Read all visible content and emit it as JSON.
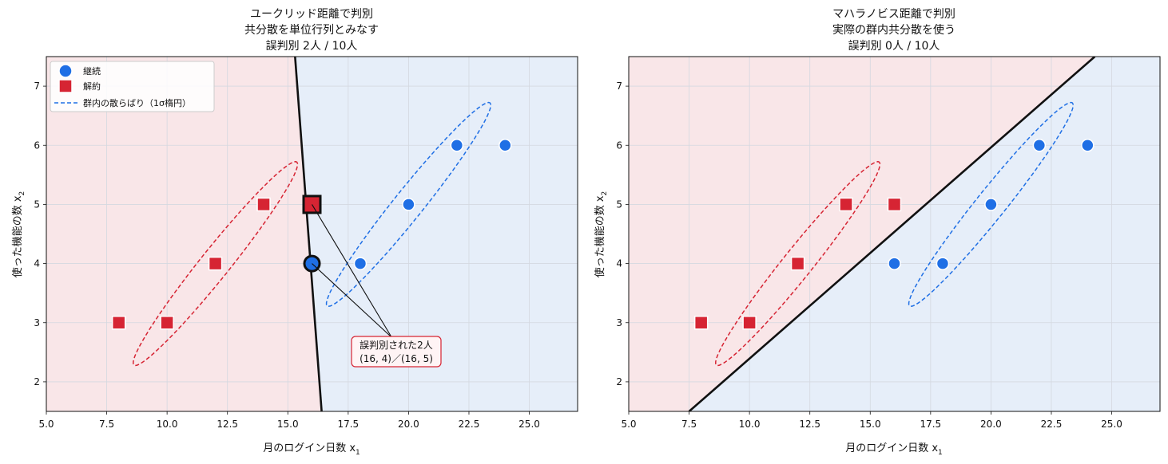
{
  "colors": {
    "continue": "#1f6fe5",
    "cancel": "#d62433",
    "region_continue": "#e6eef9",
    "region_cancel": "#f9e6e8",
    "boundary": "#111111",
    "grid": "#d4d8e0"
  },
  "legend": {
    "continue_label": "継続",
    "cancel_label": "解約",
    "scatter_label": "群内の散らばり（1σ楕円）"
  },
  "chart_data": [
    {
      "type": "scatter",
      "title_lines": [
        "ユークリッド距離で判別",
        "共分散を単位行列とみなす",
        "誤判別 2人 / 10人"
      ],
      "xlabel": "月のログイン日数 x",
      "xlabel_sub": "1",
      "ylabel": "使った機能の数 x",
      "ylabel_sub": "2",
      "xlim": [
        5,
        27
      ],
      "ylim": [
        1.5,
        7.5
      ],
      "xticks": [
        "5.0",
        "7.5",
        "10.0",
        "12.5",
        "15.0",
        "17.5",
        "20.0",
        "22.5",
        "25.0"
      ],
      "yticks": [
        "2",
        "3",
        "4",
        "5",
        "6",
        "7"
      ],
      "grid": true,
      "legend_position": "upper-left",
      "series": [
        {
          "name": "継続",
          "points": [
            [
              16,
              4
            ],
            [
              18,
              4
            ],
            [
              20,
              5
            ],
            [
              22,
              6
            ],
            [
              24,
              6
            ]
          ]
        },
        {
          "name": "解約",
          "points": [
            [
              8,
              3
            ],
            [
              10,
              3
            ],
            [
              12,
              4
            ],
            [
              14,
              5
            ],
            [
              16,
              5
            ]
          ]
        }
      ],
      "highlighted": [
        [
          16,
          4
        ],
        [
          16,
          5
        ]
      ],
      "boundary": [
        [
          15.3,
          7.5
        ],
        [
          16.4,
          1.5
        ]
      ],
      "continue_side": "right",
      "ellipses": [
        {
          "group": "継続",
          "center": [
            20,
            5
          ],
          "semi_major": 3.8,
          "semi_minor": 0.35,
          "angle_deg": 26.5
        },
        {
          "group": "解約",
          "center": [
            12,
            4
          ],
          "semi_major": 3.8,
          "semi_minor": 0.35,
          "angle_deg": 26.5
        }
      ],
      "annotation": {
        "lines": [
          "誤判別された2人",
          "(16, 4)／(16, 5)"
        ],
        "center": [
          19.3,
          2.55
        ]
      }
    },
    {
      "type": "scatter",
      "title_lines": [
        "マハラノビス距離で判別",
        "実際の群内共分散を使う",
        "誤判別 0人 / 10人"
      ],
      "xlabel": "月のログイン日数 x",
      "xlabel_sub": "1",
      "ylabel": "使った機能の数 x",
      "ylabel_sub": "2",
      "xlim": [
        5,
        27
      ],
      "ylim": [
        1.5,
        7.5
      ],
      "xticks": [
        "5.0",
        "7.5",
        "10.0",
        "12.5",
        "15.0",
        "17.5",
        "20.0",
        "22.5",
        "25.0"
      ],
      "yticks": [
        "2",
        "3",
        "4",
        "5",
        "6",
        "7"
      ],
      "grid": true,
      "series": [
        {
          "name": "継続",
          "points": [
            [
              16,
              4
            ],
            [
              18,
              4
            ],
            [
              20,
              5
            ],
            [
              22,
              6
            ],
            [
              24,
              6
            ]
          ]
        },
        {
          "name": "解約",
          "points": [
            [
              8,
              3
            ],
            [
              10,
              3
            ],
            [
              12,
              4
            ],
            [
              14,
              5
            ],
            [
              16,
              5
            ]
          ]
        }
      ],
      "highlighted": [],
      "boundary": [
        [
          7.5,
          1.5
        ],
        [
          24.3,
          7.5
        ]
      ],
      "continue_side": "below-right",
      "ellipses": [
        {
          "group": "継続",
          "center": [
            20,
            5
          ],
          "semi_major": 3.8,
          "semi_minor": 0.35,
          "angle_deg": 26.5
        },
        {
          "group": "解約",
          "center": [
            12,
            4
          ],
          "semi_major": 3.8,
          "semi_minor": 0.35,
          "angle_deg": 26.5
        }
      ]
    }
  ]
}
